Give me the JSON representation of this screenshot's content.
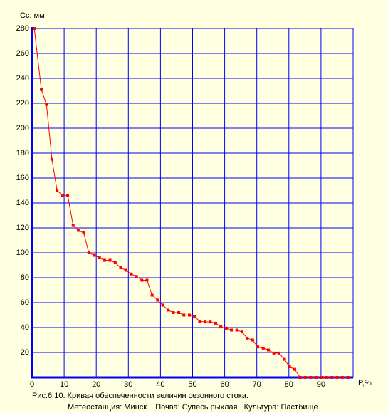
{
  "chart_data": {
    "type": "line",
    "y_label": "Сс, мм",
    "x_label": "P,%",
    "caption": [
      "Рис.6.10. Кривая обеспеченности величин сезонного стока.",
      "Метеостанция: Минск    Почва: Супесь рыхлая   Культура: Пастбище"
    ],
    "xlim": [
      0,
      100
    ],
    "ylim": [
      0,
      280
    ],
    "xticks": [
      0,
      10,
      20,
      30,
      40,
      50,
      60,
      70,
      80,
      90
    ],
    "yticks": [
      20,
      40,
      60,
      80,
      100,
      120,
      140,
      160,
      180,
      200,
      220,
      240,
      260,
      280
    ],
    "grid": true,
    "grid_color": "#0000ff",
    "axis_color": "#0000ff",
    "x": [
      0.7,
      2.9,
      4.5,
      6.2,
      7.8,
      9.5,
      11.1,
      12.8,
      14.4,
      16.1,
      17.7,
      19.4,
      21.0,
      22.6,
      24.3,
      25.9,
      27.6,
      29.2,
      30.9,
      32.5,
      34.2,
      35.8,
      37.4,
      39.1,
      40.7,
      42.4,
      44.0,
      45.7,
      47.3,
      49.0,
      50.6,
      52.2,
      53.9,
      55.5,
      57.2,
      58.8,
      60.5,
      62.1,
      63.8,
      65.4,
      67.0,
      68.7,
      70.3,
      72.0,
      73.6,
      75.3,
      76.9,
      78.6,
      80.2,
      81.8,
      83.5,
      85.1,
      86.8,
      88.4,
      90.1,
      91.7,
      93.4,
      95.0,
      96.6,
      98.3
    ],
    "series": [
      {
        "color": "#ff0000",
        "values": [
          280,
          231,
          219,
          175,
          150,
          146,
          146,
          122,
          118,
          116,
          100,
          98,
          96,
          94,
          94,
          92,
          88,
          86,
          83,
          81,
          78,
          78,
          66,
          62,
          58,
          54,
          52,
          52,
          50,
          50,
          49,
          45,
          44.5,
          44.5,
          43.5,
          40.5,
          39.5,
          38,
          38,
          36.5,
          31.5,
          30,
          24.5,
          23.5,
          22,
          19.5,
          19.5,
          14.5,
          8.5,
          6.5,
          0,
          0,
          0,
          0,
          0,
          0,
          0,
          0,
          0,
          0
        ]
      }
    ]
  }
}
